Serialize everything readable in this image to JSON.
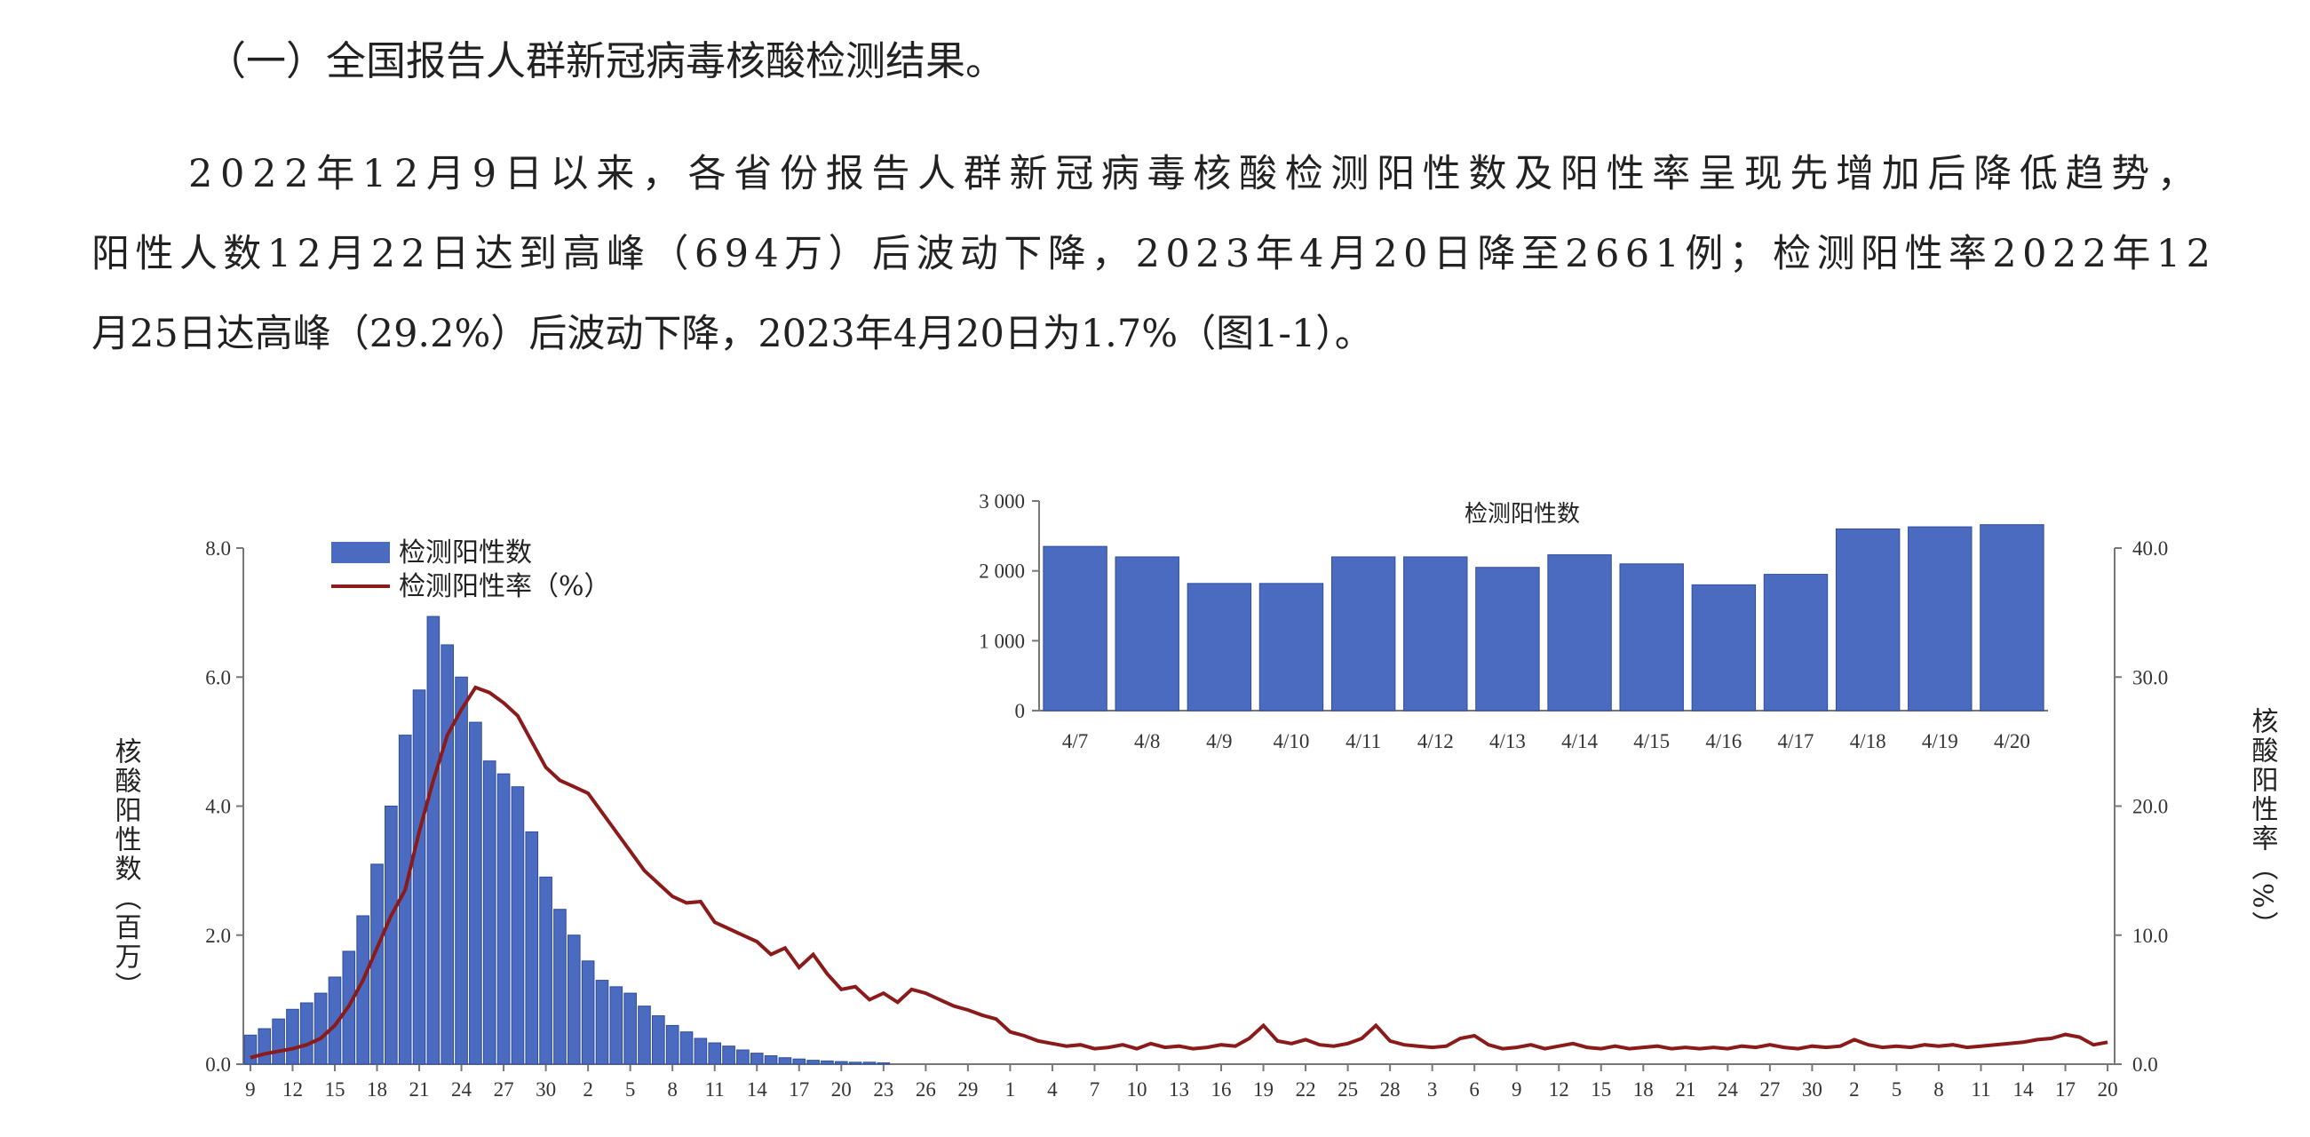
{
  "document": {
    "heading": "（一）全国报告人群新冠病毒核酸检测结果。",
    "paragraph": [
      "2022年12月9日以来，各省份报告人群新冠病毒核酸检测阳性数及阳性率呈现先增加后降低趋势，",
      "阳性人数12月22日达到高峰（694万）后波动下降，2023年4月20日降至2661例；检测阳性率2022年12",
      "月25日达高峰（29.2%）后波动下降，2023年4月20日为1.7%（图1-1）。"
    ]
  },
  "chart_data": [
    {
      "type": "bar_line",
      "ylabel": "核酸阳性数（百万）",
      "y2label": "核酸阳性率（%）",
      "categories": [
        "9",
        null,
        null,
        "12",
        null,
        null,
        "15",
        null,
        null,
        "18",
        null,
        null,
        "21",
        null,
        null,
        "24",
        null,
        null,
        "27",
        null,
        null,
        "30",
        null,
        null,
        "2",
        null,
        null,
        "5",
        null,
        null,
        "8",
        null,
        null,
        "11",
        null,
        null,
        "14",
        null,
        null,
        "17",
        null,
        null,
        "20",
        null,
        null,
        "23",
        null,
        null,
        "26",
        null,
        null,
        "29",
        null,
        null,
        "1",
        null,
        null,
        "4",
        null,
        null,
        "7",
        null,
        null,
        "10",
        null,
        null,
        "13",
        null,
        null,
        "16",
        null,
        null,
        "19",
        null,
        null,
        "22",
        null,
        null,
        "25",
        null,
        null,
        "28",
        null,
        null,
        "3",
        null,
        null,
        "6",
        null,
        null,
        "9",
        null,
        null,
        "12",
        null,
        null,
        "15",
        null,
        null,
        "18",
        null,
        null,
        "21",
        null,
        null,
        "24",
        null,
        null,
        "27",
        null,
        null,
        "30",
        null,
        null,
        "2",
        null,
        null,
        "5",
        null,
        null,
        "8",
        null,
        null,
        "11",
        null,
        null,
        "14",
        null,
        null,
        "17",
        null,
        null,
        "20"
      ],
      "series": [
        {
          "name": "检测阳性数",
          "type": "bar",
          "color": "#4a6bbf",
          "values": [
            0.45,
            0.55,
            0.7,
            0.85,
            0.95,
            1.1,
            1.35,
            1.75,
            2.3,
            3.1,
            4.0,
            5.1,
            5.8,
            6.94,
            6.5,
            6.0,
            5.3,
            4.7,
            4.5,
            4.3,
            3.6,
            2.9,
            2.4,
            2.0,
            1.6,
            1.3,
            1.2,
            1.1,
            0.9,
            0.75,
            0.6,
            0.5,
            0.4,
            0.33,
            0.28,
            0.22,
            0.17,
            0.13,
            0.1,
            0.08,
            0.06,
            0.05,
            0.04,
            0.03,
            0.03,
            0.02,
            null,
            null,
            null,
            null,
            null,
            null,
            null,
            null,
            null,
            null,
            null,
            null,
            null,
            null,
            null,
            null,
            null,
            null,
            null,
            null,
            null,
            null,
            null,
            null,
            null,
            null,
            null,
            null,
            null,
            null,
            null,
            null,
            null,
            null,
            null,
            null,
            null,
            null,
            null,
            null,
            null,
            null,
            null,
            null,
            null,
            null,
            null,
            null,
            null,
            null,
            null,
            null,
            null,
            null,
            null,
            null,
            null,
            null,
            null,
            null,
            null,
            null,
            null,
            null,
            null,
            null,
            null,
            null,
            null,
            null,
            null,
            null,
            null,
            null,
            null,
            null,
            null,
            null,
            null,
            null,
            null,
            null,
            null,
            null,
            null,
            null,
            null
          ]
        },
        {
          "name": "检测阳性率（%）",
          "type": "line",
          "axis": "y2",
          "color": "#8b1a1a",
          "values": [
            0.5,
            0.8,
            1,
            1.2,
            1.5,
            2,
            3,
            4.5,
            6.5,
            9,
            11.5,
            13.5,
            18,
            22,
            25.5,
            27.5,
            29.2,
            28.8,
            28,
            27,
            25,
            23,
            22,
            21.5,
            21,
            19.5,
            18,
            16.5,
            15,
            14,
            13,
            12.5,
            12.6,
            11,
            10.5,
            10,
            9.5,
            8.5,
            9,
            7.5,
            8.5,
            7,
            5.8,
            6,
            5,
            5.5,
            4.8,
            5.8,
            5.5,
            5,
            4.5,
            4.2,
            3.8,
            3.5,
            2.5,
            2.2,
            1.8,
            1.6,
            1.4,
            1.5,
            1.2,
            1.3,
            1.5,
            1.2,
            1.6,
            1.3,
            1.4,
            1.2,
            1.3,
            1.5,
            1.4,
            2.0,
            3.0,
            1.8,
            1.6,
            1.9,
            1.5,
            1.4,
            1.6,
            2.0,
            3.0,
            1.8,
            1.5,
            1.4,
            1.3,
            1.4,
            2.0,
            2.2,
            1.5,
            1.2,
            1.3,
            1.5,
            1.2,
            1.4,
            1.6,
            1.3,
            1.2,
            1.4,
            1.2,
            1.3,
            1.4,
            1.2,
            1.3,
            1.2,
            1.3,
            1.2,
            1.4,
            1.3,
            1.5,
            1.3,
            1.2,
            1.4,
            1.3,
            1.4,
            1.9,
            1.5,
            1.3,
            1.4,
            1.3,
            1.5,
            1.4,
            1.5,
            1.3,
            1.4,
            1.5,
            1.6,
            1.7,
            1.9,
            2.0,
            2.3,
            2.1,
            1.5,
            1.7
          ]
        }
      ],
      "ylim": [
        0,
        8
      ],
      "yticks": [
        {
          "value": 0,
          "label": "0.0"
        },
        {
          "value": 2,
          "label": "2.0"
        },
        {
          "value": 4,
          "label": "4.0"
        },
        {
          "value": 6,
          "label": "6.0"
        },
        {
          "value": 8,
          "label": "8.0"
        }
      ],
      "y2lim": [
        0,
        40
      ],
      "y2ticks": [
        {
          "value": 0,
          "label": "0.0"
        },
        {
          "value": 10,
          "label": "10.0"
        },
        {
          "value": 20,
          "label": "20.0"
        },
        {
          "value": 30,
          "label": "30.0"
        },
        {
          "value": 40,
          "label": "40.0"
        }
      ],
      "legend": "upper left"
    },
    {
      "type": "bar",
      "title": "检测阳性数",
      "categories": [
        "4/7",
        "4/8",
        "4/9",
        "4/10",
        "4/11",
        "4/12",
        "4/13",
        "4/14",
        "4/15",
        "4/16",
        "4/17",
        "4/18",
        "4/19",
        "4/20"
      ],
      "values": [
        2350,
        2200,
        1820,
        1820,
        2200,
        2200,
        2050,
        2230,
        2100,
        1800,
        1950,
        2600,
        2630,
        2661
      ],
      "color": "#4a6bbf",
      "ylim": [
        0,
        3000
      ],
      "yticks": [
        0,
        {
          "value": 1000,
          "label": "1 000"
        },
        {
          "value": 2000,
          "label": "2 000"
        },
        {
          "value": 3000,
          "label": "3 000"
        }
      ]
    }
  ]
}
